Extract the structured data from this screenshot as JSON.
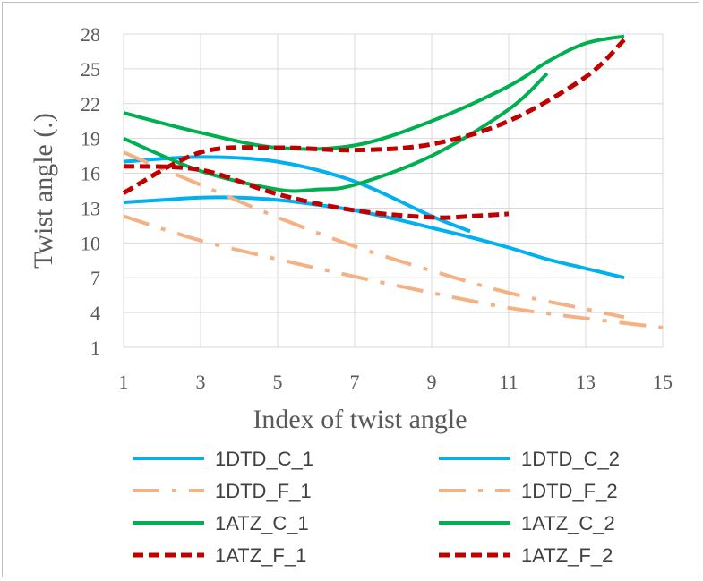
{
  "chart_data": {
    "type": "line",
    "title": "",
    "xlabel": "Index of twist angle",
    "ylabel": "Twist angle (.)",
    "xlim": [
      1,
      15
    ],
    "ylim": [
      1,
      28
    ],
    "xticks": [
      1,
      3,
      5,
      7,
      9,
      11,
      13,
      15
    ],
    "yticks": [
      1,
      4,
      7,
      10,
      13,
      16,
      19,
      22,
      25,
      28
    ],
    "grid": true,
    "legend_position": "bottom",
    "series": [
      {
        "name": "1DTD_C_1",
        "color": "#00b0f0",
        "dash": "solid",
        "x": [
          1,
          3,
          5,
          7,
          9,
          10
        ],
        "y": [
          17.0,
          17.4,
          17.0,
          15.3,
          12.3,
          11.0
        ]
      },
      {
        "name": "1DTD_C_2",
        "color": "#00b0f0",
        "dash": "solid",
        "x": [
          1,
          2,
          3,
          4,
          5,
          6,
          7,
          8,
          9,
          10,
          11,
          12,
          13,
          14
        ],
        "y": [
          13.5,
          13.7,
          13.9,
          13.9,
          13.7,
          13.3,
          12.8,
          12.1,
          11.3,
          10.5,
          9.6,
          8.6,
          7.8,
          7.0
        ]
      },
      {
        "name": "1DTD_F_1",
        "color": "#f4b183",
        "dash": "dashdot",
        "x": [
          1,
          3,
          5,
          7,
          9,
          11,
          13,
          15
        ],
        "y": [
          12.3,
          10.2,
          8.6,
          7.1,
          5.7,
          4.4,
          3.5,
          2.7
        ]
      },
      {
        "name": "1DTD_F_2",
        "color": "#f4b183",
        "dash": "dashdot",
        "x": [
          1,
          3,
          5,
          7,
          9,
          11,
          13,
          14
        ],
        "y": [
          17.8,
          15.0,
          12.2,
          9.7,
          7.6,
          5.7,
          4.3,
          3.6
        ]
      },
      {
        "name": "1ATZ_C_1",
        "color": "#00b050",
        "dash": "solid",
        "x": [
          1,
          3,
          5,
          7,
          9,
          11,
          12,
          13,
          14
        ],
        "y": [
          21.2,
          19.5,
          18.2,
          18.4,
          20.5,
          23.5,
          25.6,
          27.2,
          27.8
        ]
      },
      {
        "name": "1ATZ_C_2",
        "color": "#00b050",
        "dash": "solid",
        "x": [
          1,
          3,
          5,
          6,
          7,
          9,
          11,
          12
        ],
        "y": [
          19.0,
          16.2,
          14.6,
          14.6,
          15.0,
          17.5,
          21.5,
          24.6
        ]
      },
      {
        "name": "1ATZ_F_1",
        "color": "#c00000",
        "dash": "dashed",
        "x": [
          1,
          3,
          5,
          7,
          9,
          11,
          13,
          14
        ],
        "y": [
          14.3,
          17.8,
          18.2,
          18.0,
          18.5,
          20.5,
          24.3,
          27.5
        ]
      },
      {
        "name": "1ATZ_F_2",
        "color": "#c00000",
        "dash": "dashed",
        "x": [
          1,
          3,
          5,
          7,
          9,
          10,
          11
        ],
        "y": [
          16.6,
          16.3,
          14.2,
          12.8,
          12.2,
          12.3,
          12.5
        ]
      }
    ]
  }
}
